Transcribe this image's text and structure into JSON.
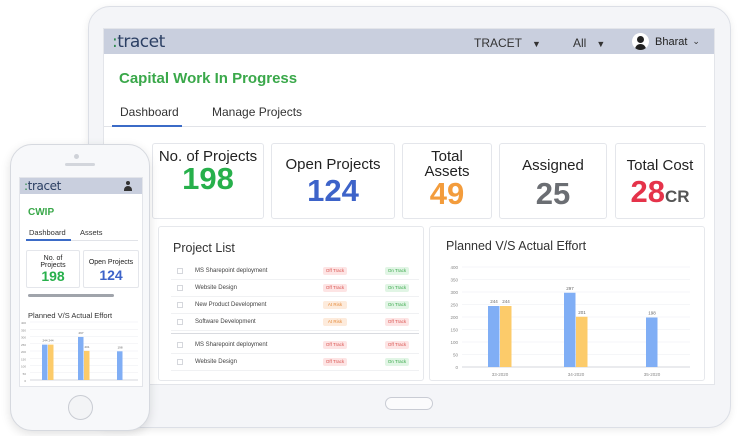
{
  "header": {
    "logo": "tracet",
    "company_select": "TRACET",
    "filter_select": "All",
    "user_name": "Bharat"
  },
  "page": {
    "title": "Capital Work In Progress",
    "tabs": [
      {
        "label": "Dashboard",
        "active": true
      },
      {
        "label": "Manage Projects",
        "active": false
      }
    ]
  },
  "kpis": [
    {
      "label": "No. of Projects",
      "value": "198",
      "unit": "",
      "color": "#27b04b"
    },
    {
      "label": "Open Projects",
      "value": "124",
      "unit": "",
      "color": "#3d63c9"
    },
    {
      "label": "Total Assets",
      "value": "49",
      "unit": "",
      "color": "#f39c3c"
    },
    {
      "label": "Assigned",
      "value": "25",
      "unit": "",
      "color": "#6b6e73"
    },
    {
      "label": "Total Cost",
      "value": "28",
      "unit": "CR",
      "color": "#e5334a"
    }
  ],
  "project_list": {
    "title": "Project List",
    "rows": [
      {
        "name": "MS Sharepoint deployment",
        "status1": "Off Track",
        "status2": "On Track"
      },
      {
        "name": "Website Design",
        "status1": "Off Track",
        "status2": "On Track"
      },
      {
        "name": "New Product Development",
        "status1": "At Risk",
        "status2": "On Track"
      },
      {
        "name": "Software Development",
        "status1": "At Risk",
        "status2": "Off Track"
      },
      {
        "name": "MS Sharepoint deployment",
        "status1": "Off Track",
        "status2": "Off Track"
      },
      {
        "name": "Website Design",
        "status1": "Off Track",
        "status2": "On Track"
      }
    ]
  },
  "status_colors": {
    "Off Track": {
      "bg": "#fde4e4",
      "fg": "#d9534f"
    },
    "On Track": {
      "bg": "#e1f5e5",
      "fg": "#3aa84a"
    },
    "At Risk": {
      "bg": "#fdebdc",
      "fg": "#e58a3a"
    }
  },
  "chart_data": {
    "type": "bar",
    "title": "Planned V/S Actual Effort",
    "categories": [
      "33-2020",
      "34-2020",
      "35-2020"
    ],
    "series": [
      {
        "values": [
          244,
          297,
          198
        ],
        "color": "#80aef5"
      },
      {
        "values": [
          244,
          201,
          null
        ],
        "color": "#fccb6a"
      }
    ],
    "data_labels": [
      [
        "244",
        "244"
      ],
      [
        "297",
        "201"
      ],
      [
        "198",
        ""
      ]
    ],
    "yticks": [
      0,
      50,
      100,
      150,
      200,
      250,
      300,
      350,
      400
    ],
    "ylim": [
      0,
      400
    ],
    "grid": true
  },
  "mobile": {
    "logo": "tracet",
    "title": "CWIP",
    "tabs": [
      {
        "label": "Dashboard",
        "active": true
      },
      {
        "label": "Assets",
        "active": false
      }
    ],
    "kpis": [
      {
        "label": "No. of Projects",
        "value": "198",
        "color": "#27b04b"
      },
      {
        "label": "Open Projects",
        "value": "124",
        "color": "#3d63c9"
      }
    ],
    "chart_title": "Planned V/S Actual Effort"
  }
}
